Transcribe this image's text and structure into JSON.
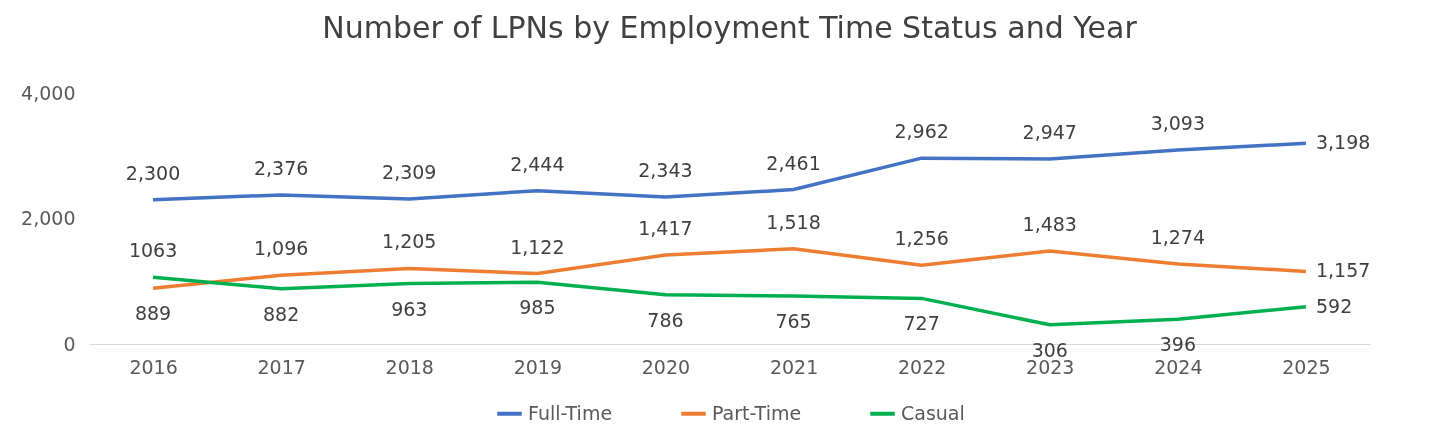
{
  "chart_data": {
    "type": "line",
    "title": "Number of LPNs by Employment Time Status and Year",
    "categories": [
      "2016",
      "2017",
      "2018",
      "2019",
      "2020",
      "2021",
      "2022",
      "2023",
      "2024",
      "2025"
    ],
    "series": [
      {
        "name": "Full-Time",
        "color": "#4472c4",
        "values": [
          2300,
          2376,
          2309,
          2444,
          2343,
          2461,
          2962,
          2947,
          3093,
          3198
        ],
        "value_labels": [
          "2,300",
          "2,376",
          "2,309",
          "2,444",
          "2,343",
          "2,461",
          "2,962",
          "2,947",
          "3,093",
          "3,198"
        ]
      },
      {
        "name": "Part-Time",
        "color": "#ed7d31",
        "values": [
          889,
          1096,
          1205,
          1122,
          1417,
          1518,
          1256,
          1483,
          1274,
          1157
        ],
        "value_labels": [
          "889",
          "1,096",
          "1,205",
          "1,122",
          "1,417",
          "1,518",
          "1,256",
          "1,483",
          "1,274",
          "1,157"
        ]
      },
      {
        "name": "Casual",
        "color": "#00b050",
        "values": [
          1063,
          882,
          963,
          985,
          786,
          765,
          727,
          306,
          396,
          592
        ],
        "value_labels": [
          "1063",
          "882",
          "963",
          "985",
          "786",
          "765",
          "727",
          "306",
          "396",
          "592"
        ]
      }
    ],
    "ylim": [
      0,
      4000
    ],
    "yticks": [
      0,
      {
        "value": 2000,
        "label": "2,000"
      },
      {
        "value": 4000,
        "label": "4,000"
      }
    ],
    "grid": false,
    "legend": "bottom",
    "marker": "none",
    "line_style": "solid"
  }
}
